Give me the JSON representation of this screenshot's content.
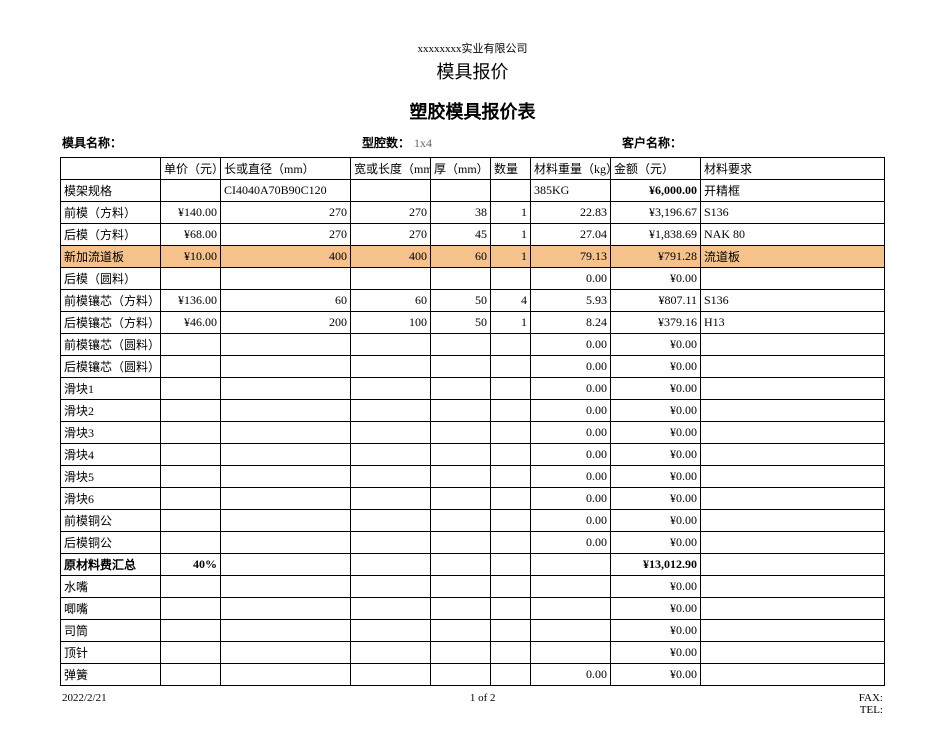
{
  "company": "xxxxxxxx实业有限公司",
  "title1": "模具报价",
  "title2": "塑胶模具报价表",
  "meta": {
    "name_label": "模具名称：",
    "cavity_label": "型腔数：",
    "cavity_value": "1x4",
    "customer_label": "客户名称："
  },
  "headers": {
    "price": "单价（元）",
    "length": "长或直径（mm）",
    "width": "宽或长度（mm）",
    "thick": "厚（mm）",
    "qty": "数量",
    "weight": "材料重量（kg）",
    "amount": "金额（元）",
    "material": "材料要求"
  },
  "spec_row": {
    "label": "模架规格",
    "length": "CI4040A70B90C120",
    "weight": "385KG",
    "amount": "¥6,000.00",
    "material": "开精框"
  },
  "rows": [
    {
      "label": "前模（方料）",
      "price": "¥140.00",
      "length": "270",
      "width": "270",
      "thick": "38",
      "qty": "1",
      "weight": "22.83",
      "amount": "¥3,196.67",
      "material": "S136",
      "hl": false
    },
    {
      "label": "后模（方料）",
      "price": "¥68.00",
      "length": "270",
      "width": "270",
      "thick": "45",
      "qty": "1",
      "weight": "27.04",
      "amount": "¥1,838.69",
      "material": "NAK 80",
      "hl": false
    },
    {
      "label": "新加流道板",
      "price": "¥10.00",
      "length": "400",
      "width": "400",
      "thick": "60",
      "qty": "1",
      "weight": "79.13",
      "amount": "¥791.28",
      "material": "流道板",
      "hl": true
    },
    {
      "label": "后模（圆料）",
      "price": "",
      "length": "",
      "width": "",
      "thick": "",
      "qty": "",
      "weight": "0.00",
      "amount": "¥0.00",
      "material": "",
      "hl": false
    },
    {
      "label": "前模镶芯（方料）",
      "price": "¥136.00",
      "length": "60",
      "width": "60",
      "thick": "50",
      "qty": "4",
      "weight": "5.93",
      "amount": "¥807.11",
      "material": "S136",
      "hl": false
    },
    {
      "label": "后模镶芯（方料）",
      "price": "¥46.00",
      "length": "200",
      "width": "100",
      "thick": "50",
      "qty": "1",
      "weight": "8.24",
      "amount": "¥379.16",
      "material": "H13",
      "hl": false
    },
    {
      "label": "前模镶芯（圆料）",
      "price": "",
      "length": "",
      "width": "",
      "thick": "",
      "qty": "",
      "weight": "0.00",
      "amount": "¥0.00",
      "material": "",
      "hl": false
    },
    {
      "label": "后模镶芯（圆料）",
      "price": "",
      "length": "",
      "width": "",
      "thick": "",
      "qty": "",
      "weight": "0.00",
      "amount": "¥0.00",
      "material": "",
      "hl": false
    },
    {
      "label": "滑块1",
      "price": "",
      "length": "",
      "width": "",
      "thick": "",
      "qty": "",
      "weight": "0.00",
      "amount": "¥0.00",
      "material": "",
      "hl": false
    },
    {
      "label": "滑块2",
      "price": "",
      "length": "",
      "width": "",
      "thick": "",
      "qty": "",
      "weight": "0.00",
      "amount": "¥0.00",
      "material": "",
      "hl": false
    },
    {
      "label": "滑块3",
      "price": "",
      "length": "",
      "width": "",
      "thick": "",
      "qty": "",
      "weight": "0.00",
      "amount": "¥0.00",
      "material": "",
      "hl": false
    },
    {
      "label": "滑块4",
      "price": "",
      "length": "",
      "width": "",
      "thick": "",
      "qty": "",
      "weight": "0.00",
      "amount": "¥0.00",
      "material": "",
      "hl": false
    },
    {
      "label": "滑块5",
      "price": "",
      "length": "",
      "width": "",
      "thick": "",
      "qty": "",
      "weight": "0.00",
      "amount": "¥0.00",
      "material": "",
      "hl": false
    },
    {
      "label": "滑块6",
      "price": "",
      "length": "",
      "width": "",
      "thick": "",
      "qty": "",
      "weight": "0.00",
      "amount": "¥0.00",
      "material": "",
      "hl": false
    },
    {
      "label": "前模铜公",
      "price": "",
      "length": "",
      "width": "",
      "thick": "",
      "qty": "",
      "weight": "0.00",
      "amount": "¥0.00",
      "material": "",
      "hl": false
    },
    {
      "label": "后模铜公",
      "price": "",
      "length": "",
      "width": "",
      "thick": "",
      "qty": "",
      "weight": "0.00",
      "amount": "¥0.00",
      "material": "",
      "hl": false
    }
  ],
  "subtotal": {
    "label": "原材料费汇总",
    "pct": "40%",
    "amount": "¥13,012.90"
  },
  "rows2": [
    {
      "label": "水嘴",
      "weight": "",
      "amount": "¥0.00"
    },
    {
      "label": "唧嘴",
      "weight": "",
      "amount": "¥0.00"
    },
    {
      "label": "司筒",
      "weight": "",
      "amount": "¥0.00"
    },
    {
      "label": "顶针",
      "weight": "",
      "amount": "¥0.00"
    },
    {
      "label": "弹簧",
      "weight": "0.00",
      "amount": "¥0.00"
    }
  ],
  "footer": {
    "date": "2022/2/21",
    "page": "1 of 2",
    "fax": "FAX:",
    "tel": "TEL:"
  },
  "colors": {
    "highlight": "#f4c28a"
  }
}
